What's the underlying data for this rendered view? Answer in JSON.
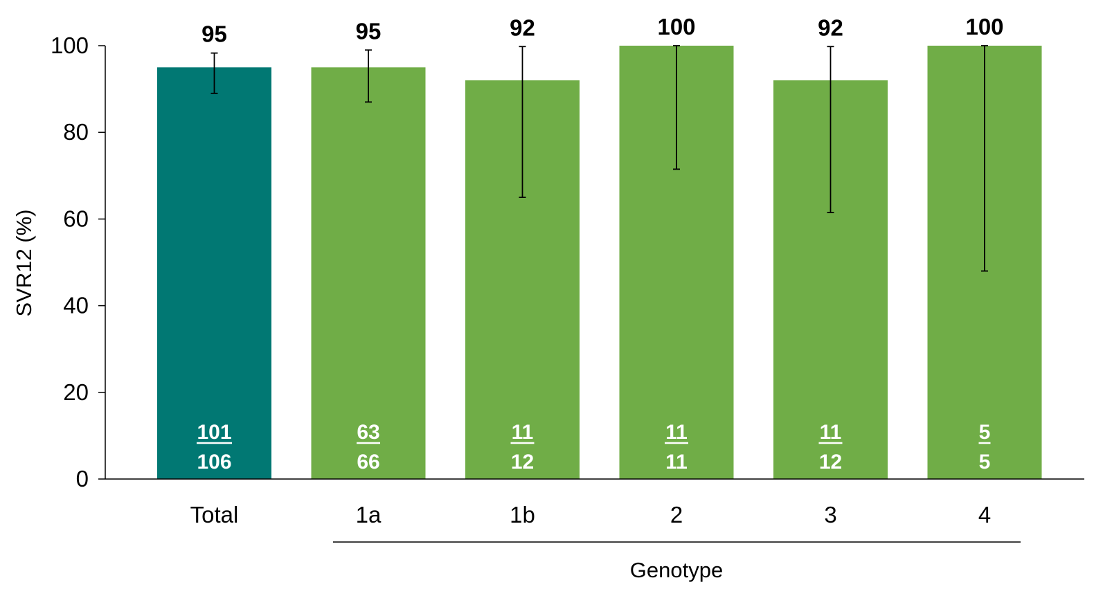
{
  "chart_data": {
    "type": "bar",
    "title": "",
    "ylabel": "SVR12 (%)",
    "xlabel": "",
    "group_label": "Genotype",
    "ylim": [
      0,
      100
    ],
    "yticks": [
      0,
      20,
      40,
      60,
      80,
      100
    ],
    "grid": false,
    "legend": "none",
    "categories": [
      "Total",
      "1a",
      "1b",
      "2",
      "3",
      "4"
    ],
    "values": [
      95,
      95,
      92,
      100,
      92,
      100
    ],
    "value_labels": [
      "95",
      "95",
      "92",
      "100",
      "92",
      "100"
    ],
    "error_low": [
      89,
      87,
      65,
      71.5,
      61.5,
      48
    ],
    "error_high": [
      98.3,
      99,
      99.8,
      100,
      99.8,
      100
    ],
    "numerators": [
      "101",
      "63",
      "11",
      "11",
      "11",
      "5"
    ],
    "denominators": [
      "106",
      "66",
      "12",
      "11",
      "12",
      "5"
    ],
    "bar_colors": [
      "#017873",
      "#70AD47",
      "#70AD47",
      "#70AD47",
      "#70AD47",
      "#70AD47"
    ],
    "grouped_categories": [
      "1a",
      "1b",
      "2",
      "3",
      "4"
    ]
  }
}
